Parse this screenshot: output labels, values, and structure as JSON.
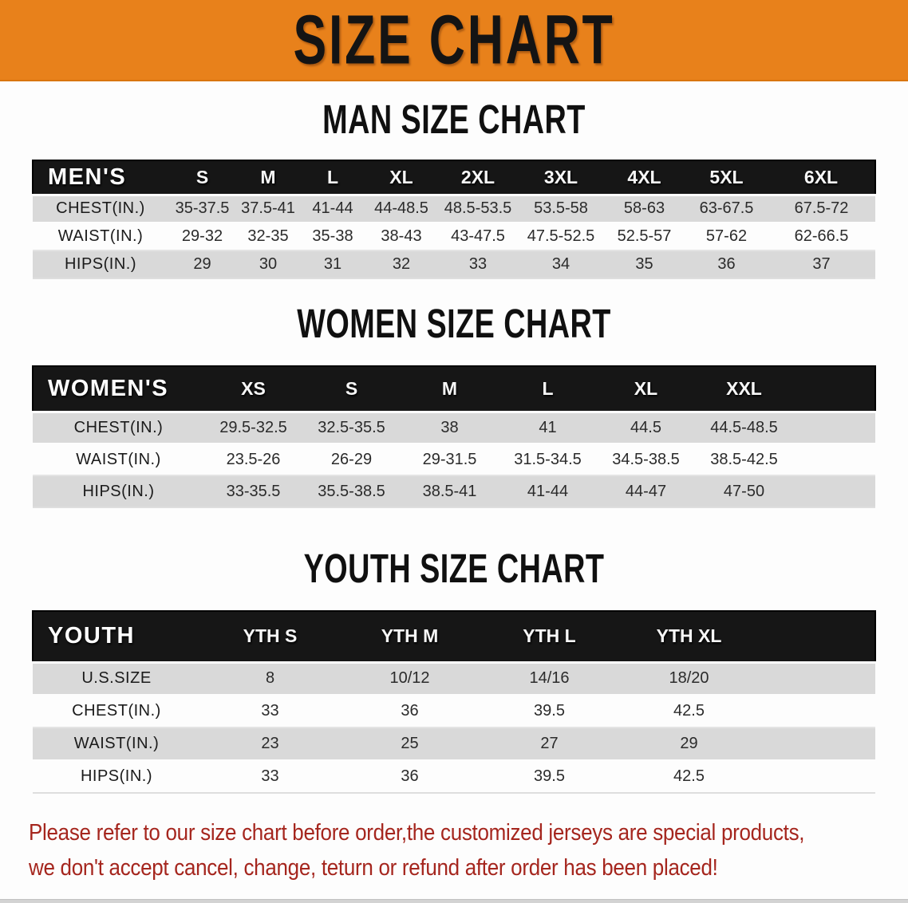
{
  "banner": {
    "title": "SIZE CHART"
  },
  "headings": {
    "men": "MAN SIZE CHART",
    "women": "WOMEN SIZE CHART",
    "youth": "YOUTH SIZE CHART"
  },
  "tables": {
    "men": {
      "corner": "MEN'S",
      "sizes": [
        "S",
        "M",
        "L",
        "XL",
        "2XL",
        "3XL",
        "4XL",
        "5XL",
        "6XL"
      ],
      "trailing_blank": false,
      "rows": [
        {
          "label": "CHEST(IN.)",
          "values": [
            "35-37.5",
            "37.5-41",
            "41-44",
            "44-48.5",
            "48.5-53.5",
            "53.5-58",
            "58-63",
            "63-67.5",
            "67.5-72"
          ]
        },
        {
          "label": "WAIST(IN.)",
          "values": [
            "29-32",
            "32-35",
            "35-38",
            "38-43",
            "43-47.5",
            "47.5-52.5",
            "52.5-57",
            "57-62",
            "62-66.5"
          ]
        },
        {
          "label": "HIPS(IN.)",
          "values": [
            "29",
            "30",
            "31",
            "32",
            "33",
            "34",
            "35",
            "36",
            "37"
          ]
        }
      ]
    },
    "women": {
      "corner": "WOMEN'S",
      "sizes": [
        "XS",
        "S",
        "M",
        "L",
        "XL",
        "XXL"
      ],
      "trailing_blank": true,
      "rows": [
        {
          "label": "CHEST(IN.)",
          "values": [
            "29.5-32.5",
            "32.5-35.5",
            "38",
            "41",
            "44.5",
            "44.5-48.5"
          ]
        },
        {
          "label": "WAIST(IN.)",
          "values": [
            "23.5-26",
            "26-29",
            "29-31.5",
            "31.5-34.5",
            "34.5-38.5",
            "38.5-42.5"
          ]
        },
        {
          "label": "HIPS(IN.)",
          "values": [
            "33-35.5",
            "35.5-38.5",
            "38.5-41",
            "41-44",
            "44-47",
            "47-50"
          ]
        }
      ]
    },
    "youth": {
      "corner": "YOUTH",
      "sizes": [
        "YTH S",
        "YTH M",
        "YTH L",
        "YTH XL"
      ],
      "trailing_blank": true,
      "rows": [
        {
          "label": "U.S.SIZE",
          "values": [
            "8",
            "10/12",
            "14/16",
            "18/20"
          ]
        },
        {
          "label": "CHEST(IN.)",
          "values": [
            "33",
            "36",
            "39.5",
            "42.5"
          ]
        },
        {
          "label": "WAIST(IN.)",
          "values": [
            "23",
            "25",
            "27",
            "29"
          ]
        },
        {
          "label": "HIPS(IN.)",
          "values": [
            "33",
            "36",
            "39.5",
            "42.5"
          ]
        }
      ]
    }
  },
  "footer": {
    "line1": "Please refer to our size chart before order,the customized jerseys are special products,",
    "line2": "we don't accept cancel, change, teturn or refund after order has been placed!"
  },
  "colors": {
    "banner_bg": "#e8811b",
    "header_bar": "#161616",
    "row_gray": "#d9d9d9",
    "notice_red": "#a5261e",
    "title_text": "#141414"
  }
}
